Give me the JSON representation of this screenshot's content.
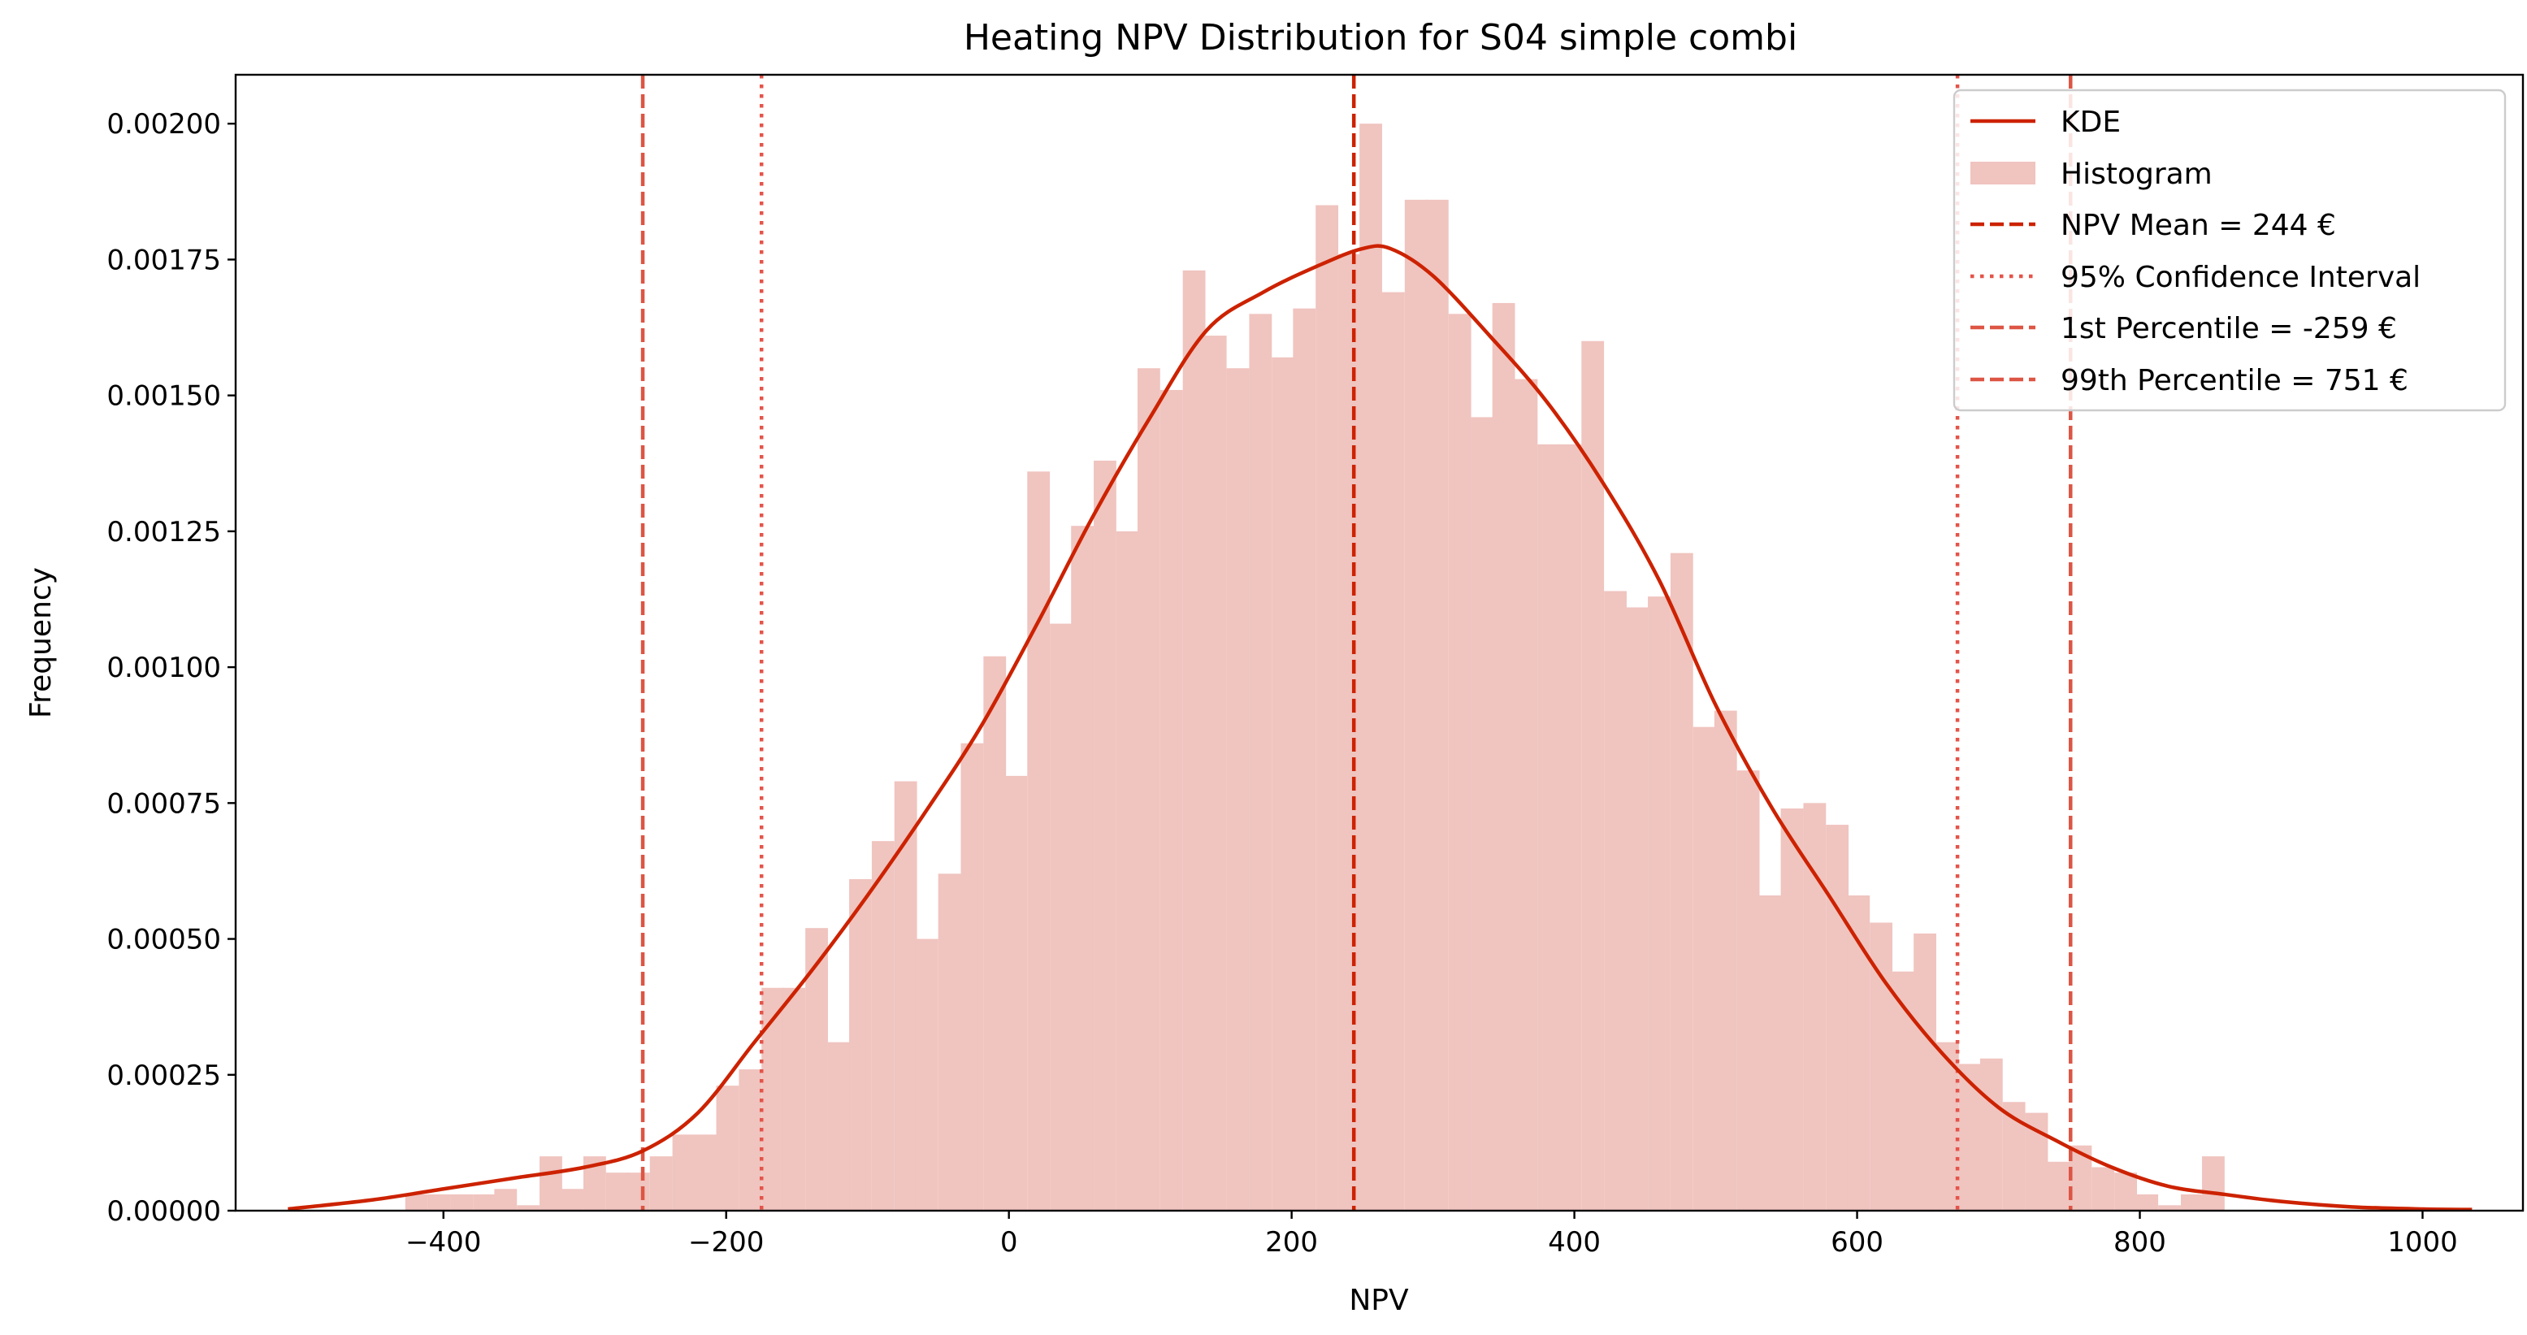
{
  "chart_data": {
    "type": "bar",
    "title": "Heating NPV Distribution for S04 simple combi",
    "xlabel": "NPV",
    "ylabel": "Frequency",
    "xlim": [
      -547,
      1071
    ],
    "ylim": [
      0,
      0.00209
    ],
    "xticks": [
      -400,
      -200,
      0,
      200,
      400,
      600,
      800,
      1000
    ],
    "xtick_labels": [
      "−400",
      "−200",
      "0",
      "200",
      "400",
      "600",
      "800",
      "1000"
    ],
    "yticks": [
      0,
      0.00025,
      0.0005,
      0.00075,
      0.001,
      0.00125,
      0.0015,
      0.00175,
      0.002
    ],
    "ytick_labels": [
      "0.00000",
      "0.00025",
      "0.00050",
      "0.00075",
      "0.00100",
      "0.00125",
      "0.00150",
      "0.00175",
      "0.00200"
    ],
    "grid": false,
    "legend_position": "top-right",
    "colors": {
      "kde": "#cc2200",
      "histogram": "#f0c4bf",
      "mean": "#cc2200",
      "ci": "#e4544a",
      "percentile": "#dd5544"
    },
    "histogram": {
      "name": "Histogram",
      "bin_width": 15.7,
      "bin_left_edges": [
        -427,
        -411,
        -395,
        -379,
        -364,
        -348,
        -332,
        -317,
        -301,
        -285,
        -270,
        -254,
        -238,
        -223,
        -207,
        -191,
        -175,
        -160,
        -144,
        -128,
        -113,
        -97,
        -81,
        -66,
        -50,
        -34,
        -18,
        -3,
        13,
        29,
        44,
        60,
        76,
        91,
        107,
        123,
        138,
        154,
        170,
        186,
        201,
        217,
        233,
        248,
        264,
        280,
        295,
        311,
        327,
        342,
        358,
        374,
        389,
        405,
        421,
        436,
        452,
        468,
        484,
        499,
        515,
        531,
        546,
        562,
        578,
        593,
        609,
        625,
        640,
        656,
        672,
        687,
        703,
        719,
        734,
        750,
        766,
        782,
        797,
        813,
        829,
        844
      ],
      "values": [
        3e-05,
        3e-05,
        3e-05,
        3e-05,
        4e-05,
        1e-05,
        0.0001,
        4e-05,
        0.0001,
        7e-05,
        7e-05,
        0.0001,
        0.00014,
        0.00014,
        0.00023,
        0.00026,
        0.00041,
        0.00041,
        0.00052,
        0.00031,
        0.00061,
        0.00068,
        0.00079,
        0.0005,
        0.00062,
        0.00086,
        0.00102,
        0.0008,
        0.00136,
        0.00108,
        0.00126,
        0.00138,
        0.00125,
        0.00155,
        0.00151,
        0.00173,
        0.00161,
        0.00155,
        0.00165,
        0.00157,
        0.00166,
        0.00185,
        0.00176,
        0.002,
        0.00169,
        0.00186,
        0.00186,
        0.00165,
        0.00146,
        0.00167,
        0.00153,
        0.00141,
        0.00141,
        0.0016,
        0.00114,
        0.00111,
        0.00113,
        0.00121,
        0.00089,
        0.00092,
        0.00081,
        0.00058,
        0.00074,
        0.00075,
        0.00071,
        0.00058,
        0.00053,
        0.00044,
        0.00051,
        0.00031,
        0.00027,
        0.00028,
        0.0002,
        0.00018,
        9e-05,
        0.00012,
        8e-05,
        7e-05,
        3e-05,
        1e-05,
        3e-05,
        0.0001
      ]
    },
    "kde": {
      "name": "KDE",
      "x": [
        -510,
        -450,
        -400,
        -350,
        -300,
        -259,
        -220,
        -180,
        -140,
        -100,
        -60,
        -20,
        20,
        60,
        100,
        140,
        180,
        220,
        250,
        270,
        300,
        340,
        380,
        420,
        460,
        500,
        540,
        580,
        620,
        660,
        700,
        740,
        780,
        820,
        860,
        900,
        950,
        1000,
        1035
      ],
      "y": [
        3e-06,
        2e-05,
        4e-05,
        6e-05,
        8e-05,
        0.00011,
        0.00018,
        0.00031,
        0.00044,
        0.00058,
        0.00073,
        0.00089,
        0.00108,
        0.00128,
        0.00146,
        0.00162,
        0.00169,
        0.00174,
        0.00177,
        0.00177,
        0.00172,
        0.00161,
        0.00149,
        0.00134,
        0.00116,
        0.00093,
        0.00074,
        0.00058,
        0.00042,
        0.00029,
        0.00019,
        0.00013,
        8e-05,
        4.5e-05,
        3e-05,
        1.7e-05,
        7e-06,
        3e-06,
        2e-06
      ]
    },
    "reference_lines": {
      "mean": {
        "x": 244,
        "label": "NPV Mean = 244 €"
      },
      "ci_low": {
        "x": -175
      },
      "ci_high": {
        "x": 671
      },
      "ci_label": "95% Confidence Interval",
      "p1": {
        "x": -259,
        "label": "1st Percentile = -259 €"
      },
      "p99": {
        "x": 751,
        "label": "99th Percentile = 751 €"
      }
    }
  }
}
